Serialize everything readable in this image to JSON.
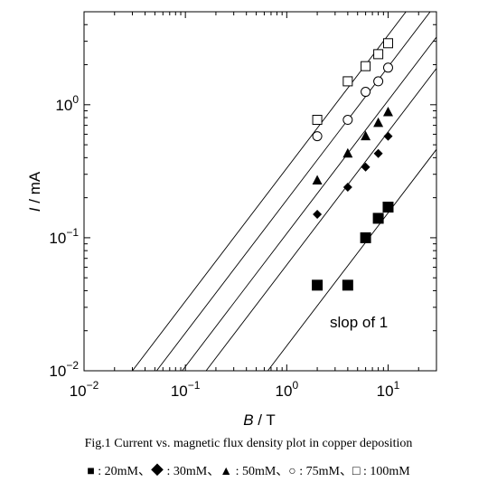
{
  "chart_data": {
    "type": "scatter",
    "x_scale": "log",
    "y_scale": "log",
    "xlim": [
      0.01,
      30
    ],
    "ylim": [
      0.01,
      5
    ],
    "grid": false,
    "legend": "caption-below",
    "x_ticks": [
      {
        "value": 0.01,
        "base": "10",
        "exp": "−2"
      },
      {
        "value": 0.1,
        "base": "10",
        "exp": "−1"
      },
      {
        "value": 1,
        "base": "10",
        "exp": "0"
      },
      {
        "value": 10,
        "base": "10",
        "exp": "1"
      }
    ],
    "y_ticks": [
      {
        "value": 0.01,
        "base": "10",
        "exp": "−2"
      },
      {
        "value": 0.1,
        "base": "10",
        "exp": "−1"
      },
      {
        "value": 1,
        "base": "10",
        "exp": "0"
      }
    ],
    "series": [
      {
        "name": "20mM",
        "marker": "filled-square",
        "x": [
          2,
          4,
          6,
          8,
          10
        ],
        "y": [
          0.044,
          0.044,
          0.1,
          0.14,
          0.17
        ]
      },
      {
        "name": "30mM",
        "marker": "filled-diamond",
        "x": [
          2,
          4,
          6,
          8,
          10
        ],
        "y": [
          0.15,
          0.24,
          0.34,
          0.43,
          0.58
        ]
      },
      {
        "name": "50mM",
        "marker": "filled-triangle",
        "x": [
          2,
          4,
          6,
          8,
          10
        ],
        "y": [
          0.27,
          0.43,
          0.58,
          0.73,
          0.88
        ]
      },
      {
        "name": "75mM",
        "marker": "open-circle",
        "x": [
          2,
          4,
          6,
          8,
          10
        ],
        "y": [
          0.58,
          0.77,
          1.25,
          1.5,
          1.9
        ]
      },
      {
        "name": "100mM",
        "marker": "open-square",
        "x": [
          2,
          4,
          6,
          8,
          10
        ],
        "y": [
          0.77,
          1.5,
          1.95,
          2.4,
          2.9
        ]
      }
    ],
    "fit_lines": [
      {
        "slope": 1,
        "x_at_ymin": 0.65
      },
      {
        "slope": 1,
        "x_at_ymin": 0.16
      },
      {
        "slope": 1,
        "x_at_ymin": 0.093
      },
      {
        "slope": 1,
        "x_at_ymin": 0.052
      },
      {
        "slope": 1,
        "x_at_ymin": 0.03
      }
    ],
    "annotation": "slop of 1"
  },
  "axes": {
    "x_title_italic": "B",
    "x_title_rest": " / T",
    "y_title_italic": "I",
    "y_title_rest": " / mA"
  },
  "caption": {
    "title": "Fig.1    Current vs. magnetic flux density plot in copper deposition",
    "legend": "■ : 20mM、◆ : 30mM、▲ : 50mM、○ : 75mM、□ : 100mM"
  }
}
